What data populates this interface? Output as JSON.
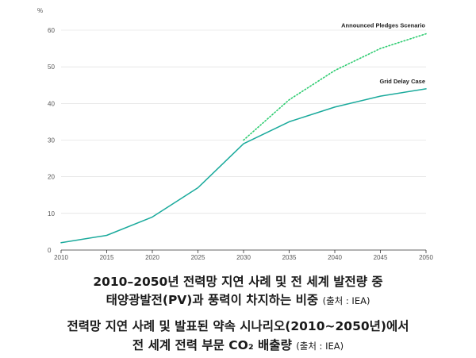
{
  "chart_data": {
    "type": "line",
    "unit_label": "%",
    "x": [
      2010,
      2015,
      2020,
      2025,
      2030,
      2035,
      2040,
      2045,
      2050
    ],
    "ylim": [
      0,
      60
    ],
    "yticks": [
      0,
      10,
      20,
      30,
      40,
      50,
      60
    ],
    "xticks": [
      "2010",
      "2015",
      "2020",
      "2025",
      "2030",
      "2035",
      "2040",
      "2045",
      "2050"
    ],
    "grid": true,
    "series": [
      {
        "name": "Grid Delay Case",
        "style": "solid",
        "color": "#1aaa9c",
        "x": [
          2010,
          2015,
          2020,
          2025,
          2030,
          2035,
          2040,
          2045,
          2050
        ],
        "values": [
          2,
          4,
          9,
          17,
          29,
          35,
          39,
          42,
          44
        ]
      },
      {
        "name": "Announced Pledges Scenario",
        "style": "dotted",
        "color": "#2ecc71",
        "x": [
          2030,
          2035,
          2040,
          2045,
          2050
        ],
        "values": [
          30,
          41,
          49,
          55,
          59
        ]
      }
    ]
  },
  "caption": {
    "line1": "2010–2050년 전력망 지연 사례 및 전 세계 발전량 중",
    "line2": "태양광발전(PV)과 풍력이 차지하는 비중",
    "line2_source": "(출처 : IEA)",
    "line3": "전력망 지연 사례 및 발표된 약속 시나리오(2010~2050년)에서",
    "line4": "전 세계 전력 부문 CO₂ 배출량",
    "line4_source": "(출처 : IEA)"
  }
}
